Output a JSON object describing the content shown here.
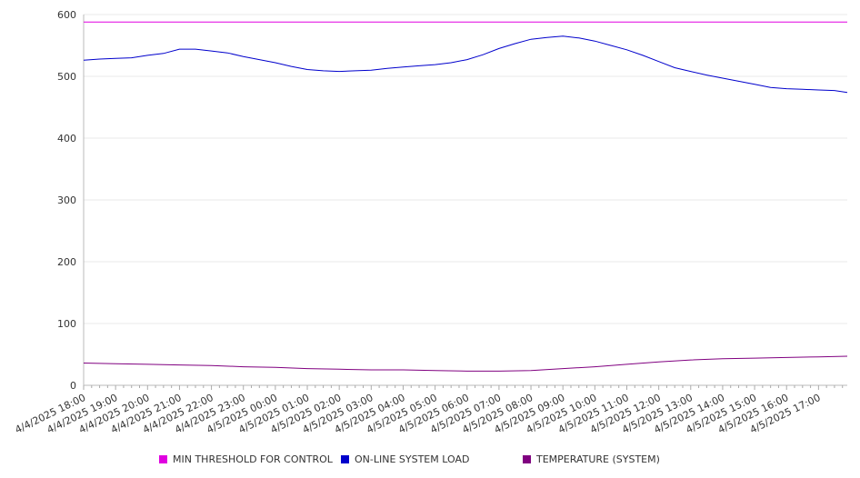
{
  "chart_data": {
    "type": "line",
    "ylim": [
      0,
      600
    ],
    "yticks": [
      0,
      100,
      200,
      300,
      400,
      500,
      600
    ],
    "x_categories": [
      "4/4/2025 18:00",
      "4/4/2025 19:00",
      "4/4/2025 20:00",
      "4/4/2025 21:00",
      "4/4/2025 22:00",
      "4/4/2025 23:00",
      "4/5/2025 00:00",
      "4/5/2025 01:00",
      "4/5/2025 02:00",
      "4/5/2025 03:00",
      "4/5/2025 04:00",
      "4/5/2025 05:00",
      "4/5/2025 06:00",
      "4/5/2025 07:00",
      "4/5/2025 08:00",
      "4/5/2025 09:00",
      "4/5/2025 10:00",
      "4/5/2025 11:00",
      "4/5/2025 12:00",
      "4/5/2025 13:00",
      "4/5/2025 14:00",
      "4/5/2025 15:00",
      "4/5/2025 16:00",
      "4/5/2025 17:00"
    ],
    "x_end_hours": 23.9,
    "series": [
      {
        "name": "MIN THRESHOLD FOR CONTROL",
        "color": "#e000e0",
        "points": [
          [
            0,
            588
          ],
          [
            23.9,
            588
          ]
        ]
      },
      {
        "name": "ON-LINE SYSTEM LOAD",
        "color": "#0000cc",
        "points": [
          [
            0,
            526
          ],
          [
            0.5,
            528
          ],
          [
            1,
            529
          ],
          [
            1.5,
            530
          ],
          [
            2,
            534
          ],
          [
            2.5,
            537
          ],
          [
            3,
            544
          ],
          [
            3.5,
            544
          ],
          [
            4,
            541
          ],
          [
            4.5,
            538
          ],
          [
            5,
            532
          ],
          [
            5.5,
            527
          ],
          [
            6,
            522
          ],
          [
            6.5,
            516
          ],
          [
            7,
            511
          ],
          [
            7.5,
            509
          ],
          [
            8,
            508
          ],
          [
            8.5,
            509
          ],
          [
            9,
            510
          ],
          [
            9.5,
            513
          ],
          [
            10,
            515
          ],
          [
            10.5,
            517
          ],
          [
            11,
            519
          ],
          [
            11.5,
            522
          ],
          [
            12,
            527
          ],
          [
            12.5,
            535
          ],
          [
            13,
            545
          ],
          [
            13.5,
            553
          ],
          [
            14,
            560
          ],
          [
            14.5,
            563
          ],
          [
            15,
            565
          ],
          [
            15.5,
            562
          ],
          [
            16,
            557
          ],
          [
            16.5,
            550
          ],
          [
            17,
            543
          ],
          [
            17.5,
            534
          ],
          [
            18,
            524
          ],
          [
            18.5,
            514
          ],
          [
            19,
            508
          ],
          [
            19.5,
            502
          ],
          [
            20,
            497
          ],
          [
            20.5,
            492
          ],
          [
            21,
            487
          ],
          [
            21.5,
            482
          ],
          [
            22,
            480
          ],
          [
            22.5,
            479
          ],
          [
            23,
            478
          ],
          [
            23.5,
            477
          ],
          [
            23.9,
            474
          ]
        ]
      },
      {
        "name": "TEMPERATURE (SYSTEM)",
        "color": "#800080",
        "points": [
          [
            0,
            36
          ],
          [
            1,
            35
          ],
          [
            2,
            34
          ],
          [
            3,
            33
          ],
          [
            4,
            32
          ],
          [
            5,
            30
          ],
          [
            6,
            29
          ],
          [
            7,
            27
          ],
          [
            8,
            26
          ],
          [
            9,
            25
          ],
          [
            10,
            25
          ],
          [
            11,
            24
          ],
          [
            12,
            23
          ],
          [
            13,
            23
          ],
          [
            14,
            24
          ],
          [
            15,
            27
          ],
          [
            16,
            30
          ],
          [
            17,
            34
          ],
          [
            18,
            38
          ],
          [
            19,
            41
          ],
          [
            20,
            43
          ],
          [
            21,
            44
          ],
          [
            22,
            45
          ],
          [
            23,
            46
          ],
          [
            23.9,
            47
          ]
        ]
      }
    ],
    "legend_position": "bottom",
    "grid": true
  }
}
